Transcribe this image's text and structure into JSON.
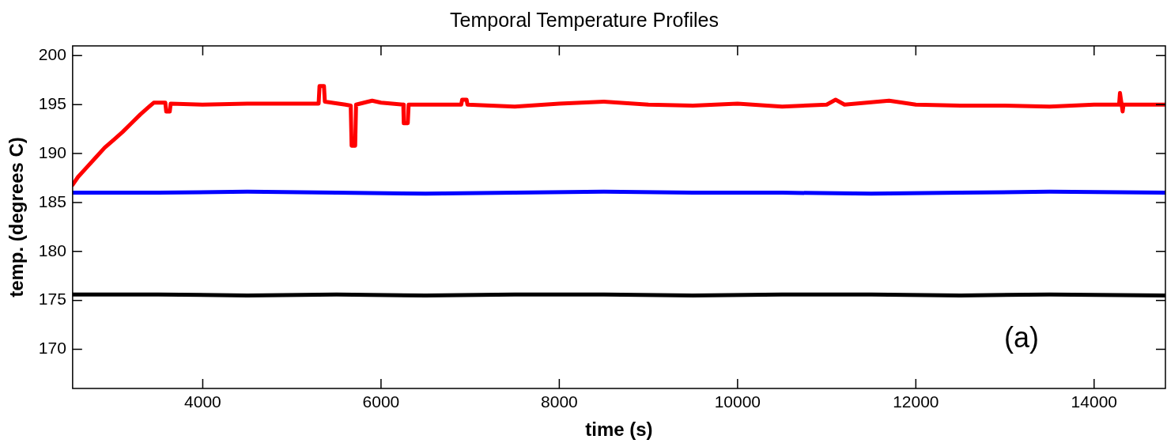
{
  "chart_data": {
    "type": "line",
    "title": "Temporal Temperature Profiles",
    "xlabel": "time (s)",
    "ylabel": "temp. (degrees C)",
    "xlim": [
      2540,
      14800
    ],
    "xticks": [
      4000,
      6000,
      8000,
      10000,
      12000,
      14000
    ],
    "ylim": [
      166,
      201
    ],
    "yticks": [
      170,
      175,
      180,
      185,
      190,
      195,
      200
    ],
    "grid": false,
    "legend": false,
    "marker": "none",
    "line_style": "solid",
    "annotations": [
      "(a)"
    ],
    "series": [
      {
        "color": "#ff0000",
        "x": [
          2540,
          2600,
          2700,
          2800,
          2900,
          3000,
          3100,
          3200,
          3300,
          3400,
          3450,
          3580,
          3590,
          3630,
          3640,
          4000,
          4500,
          5000,
          5300,
          5310,
          5360,
          5370,
          5600,
          5660,
          5670,
          5710,
          5720,
          5900,
          6000,
          6250,
          6255,
          6300,
          6310,
          6900,
          6910,
          6960,
          6970,
          7500,
          8000,
          8500,
          9000,
          9500,
          10000,
          10500,
          11000,
          11100,
          11200,
          11700,
          12000,
          12500,
          13000,
          13500,
          14000,
          14280,
          14290,
          14320,
          14330,
          14800
        ],
        "values": [
          186.8,
          187.6,
          188.6,
          189.6,
          190.6,
          191.4,
          192.2,
          193.1,
          194.0,
          194.8,
          195.2,
          195.2,
          194.3,
          194.3,
          195.1,
          195.0,
          195.1,
          195.1,
          195.1,
          196.9,
          196.9,
          195.3,
          195.0,
          194.9,
          190.8,
          190.8,
          195.0,
          195.4,
          195.2,
          195.0,
          193.1,
          193.1,
          195.0,
          195.0,
          195.5,
          195.5,
          195.0,
          194.8,
          195.1,
          195.3,
          195.0,
          194.9,
          195.1,
          194.8,
          195.0,
          195.5,
          195.0,
          195.4,
          195.0,
          194.9,
          194.9,
          194.8,
          195.0,
          195.0,
          196.2,
          194.3,
          195.0,
          195.0
        ]
      },
      {
        "color": "#0000ff",
        "x": [
          2540,
          3500,
          4500,
          5500,
          6500,
          7500,
          8500,
          9500,
          10500,
          11500,
          12500,
          13500,
          14800
        ],
        "values": [
          186.0,
          186.0,
          186.1,
          186.0,
          185.9,
          186.0,
          186.1,
          186.0,
          186.0,
          185.9,
          186.0,
          186.1,
          186.0
        ]
      },
      {
        "color": "#000000",
        "x": [
          2540,
          3500,
          4500,
          5500,
          6500,
          7500,
          8500,
          9500,
          10500,
          11500,
          12500,
          13500,
          14800
        ],
        "values": [
          175.6,
          175.6,
          175.5,
          175.6,
          175.5,
          175.6,
          175.6,
          175.5,
          175.6,
          175.6,
          175.5,
          175.6,
          175.5
        ]
      }
    ]
  }
}
